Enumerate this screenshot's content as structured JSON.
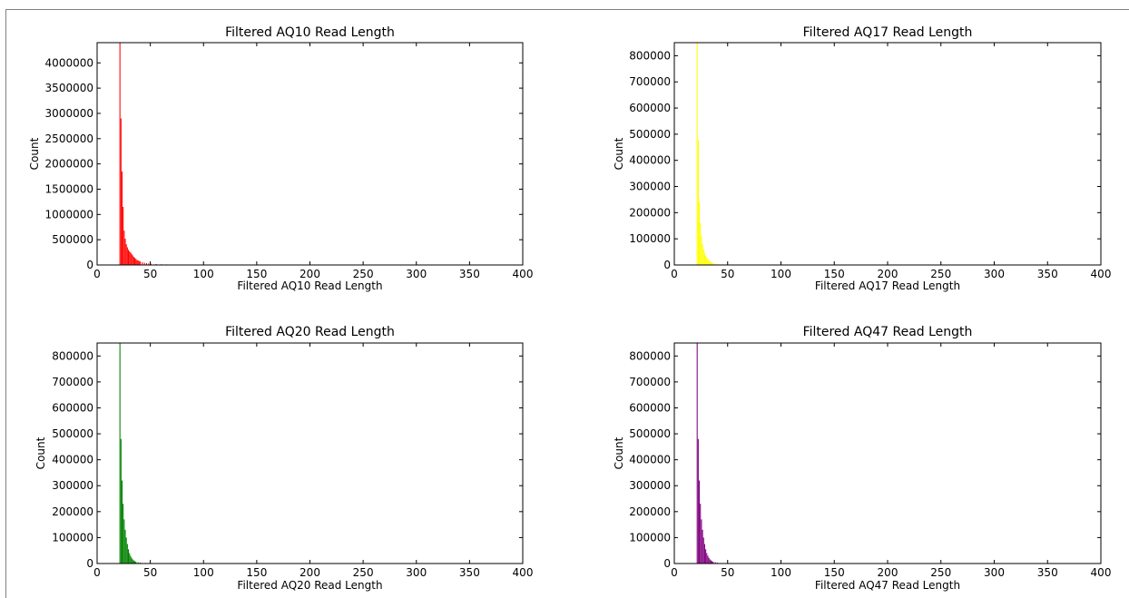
{
  "chart_data": [
    {
      "type": "bar",
      "title": "Filtered AQ10 Read Length",
      "xlabel": "Filtered AQ10 Read Length",
      "ylabel": "Count",
      "color": "#ff0000",
      "xlim": [
        0,
        400
      ],
      "ylim": [
        0,
        4400000
      ],
      "xticks": [
        0,
        50,
        100,
        150,
        200,
        250,
        300,
        350,
        400
      ],
      "yticks": [
        0,
        500000,
        1000000,
        1500000,
        2000000,
        2500000,
        3000000,
        3500000,
        4000000
      ],
      "x": [
        21,
        22,
        23,
        24,
        25,
        26,
        27,
        28,
        29,
        30,
        31,
        32,
        33,
        34,
        35,
        36,
        37,
        38,
        39,
        40,
        42,
        44,
        46,
        48,
        50,
        55,
        60,
        65,
        70,
        80,
        90,
        100,
        110,
        120
      ],
      "values": [
        4400000,
        2900000,
        1850000,
        1150000,
        680000,
        520000,
        410000,
        350000,
        300000,
        270000,
        250000,
        220000,
        190000,
        160000,
        140000,
        120000,
        100000,
        90000,
        80000,
        70000,
        55000,
        45000,
        36000,
        30000,
        25000,
        18000,
        14000,
        11000,
        9000,
        7000,
        5000,
        4000,
        3000,
        2000
      ]
    },
    {
      "type": "bar",
      "title": "Filtered AQ17 Read Length",
      "xlabel": "Filtered AQ17 Read Length",
      "ylabel": "Count",
      "color": "#ffff00",
      "xlim": [
        0,
        400
      ],
      "ylim": [
        0,
        850000
      ],
      "xticks": [
        0,
        50,
        100,
        150,
        200,
        250,
        300,
        350,
        400
      ],
      "yticks": [
        0,
        100000,
        200000,
        300000,
        400000,
        500000,
        600000,
        700000,
        800000
      ],
      "x": [
        21,
        22,
        23,
        24,
        25,
        26,
        27,
        28,
        29,
        30,
        31,
        32,
        33,
        34,
        35,
        36,
        38,
        40,
        45,
        50,
        55,
        60,
        70
      ],
      "values": [
        850000,
        480000,
        240000,
        160000,
        110000,
        80000,
        60000,
        45000,
        35000,
        28000,
        22000,
        18000,
        14000,
        11000,
        9000,
        7000,
        5000,
        4000,
        3000,
        2000,
        1500,
        1000,
        800
      ]
    },
    {
      "type": "bar",
      "title": "Filtered AQ20 Read Length",
      "xlabel": "Filtered AQ20 Read Length",
      "ylabel": "Count",
      "color": "#008000",
      "xlim": [
        0,
        400
      ],
      "ylim": [
        0,
        850000
      ],
      "xticks": [
        0,
        50,
        100,
        150,
        200,
        250,
        300,
        350,
        400
      ],
      "yticks": [
        0,
        100000,
        200000,
        300000,
        400000,
        500000,
        600000,
        700000,
        800000
      ],
      "x": [
        21,
        22,
        23,
        24,
        25,
        26,
        27,
        28,
        29,
        30,
        31,
        32,
        33,
        34,
        35,
        36,
        38,
        40,
        45,
        50
      ],
      "values": [
        850000,
        480000,
        320000,
        230000,
        170000,
        130000,
        100000,
        75000,
        55000,
        40000,
        30000,
        22000,
        16000,
        12000,
        9000,
        7000,
        5000,
        3500,
        2000,
        1000
      ]
    },
    {
      "type": "bar",
      "title": "Filtered AQ47 Read Length",
      "xlabel": "Filtered AQ47 Read Length",
      "ylabel": "Count",
      "color": "#800080",
      "xlim": [
        0,
        400
      ],
      "ylim": [
        0,
        850000
      ],
      "xticks": [
        0,
        50,
        100,
        150,
        200,
        250,
        300,
        350,
        400
      ],
      "yticks": [
        0,
        100000,
        200000,
        300000,
        400000,
        500000,
        600000,
        700000,
        800000
      ],
      "x": [
        21,
        22,
        23,
        24,
        25,
        26,
        27,
        28,
        29,
        30,
        31,
        32,
        33,
        34,
        35,
        36,
        38,
        40,
        45,
        50
      ],
      "values": [
        850000,
        480000,
        320000,
        230000,
        170000,
        130000,
        100000,
        75000,
        55000,
        40000,
        30000,
        22000,
        16000,
        12000,
        9000,
        7000,
        5000,
        3500,
        2000,
        1000
      ]
    }
  ]
}
